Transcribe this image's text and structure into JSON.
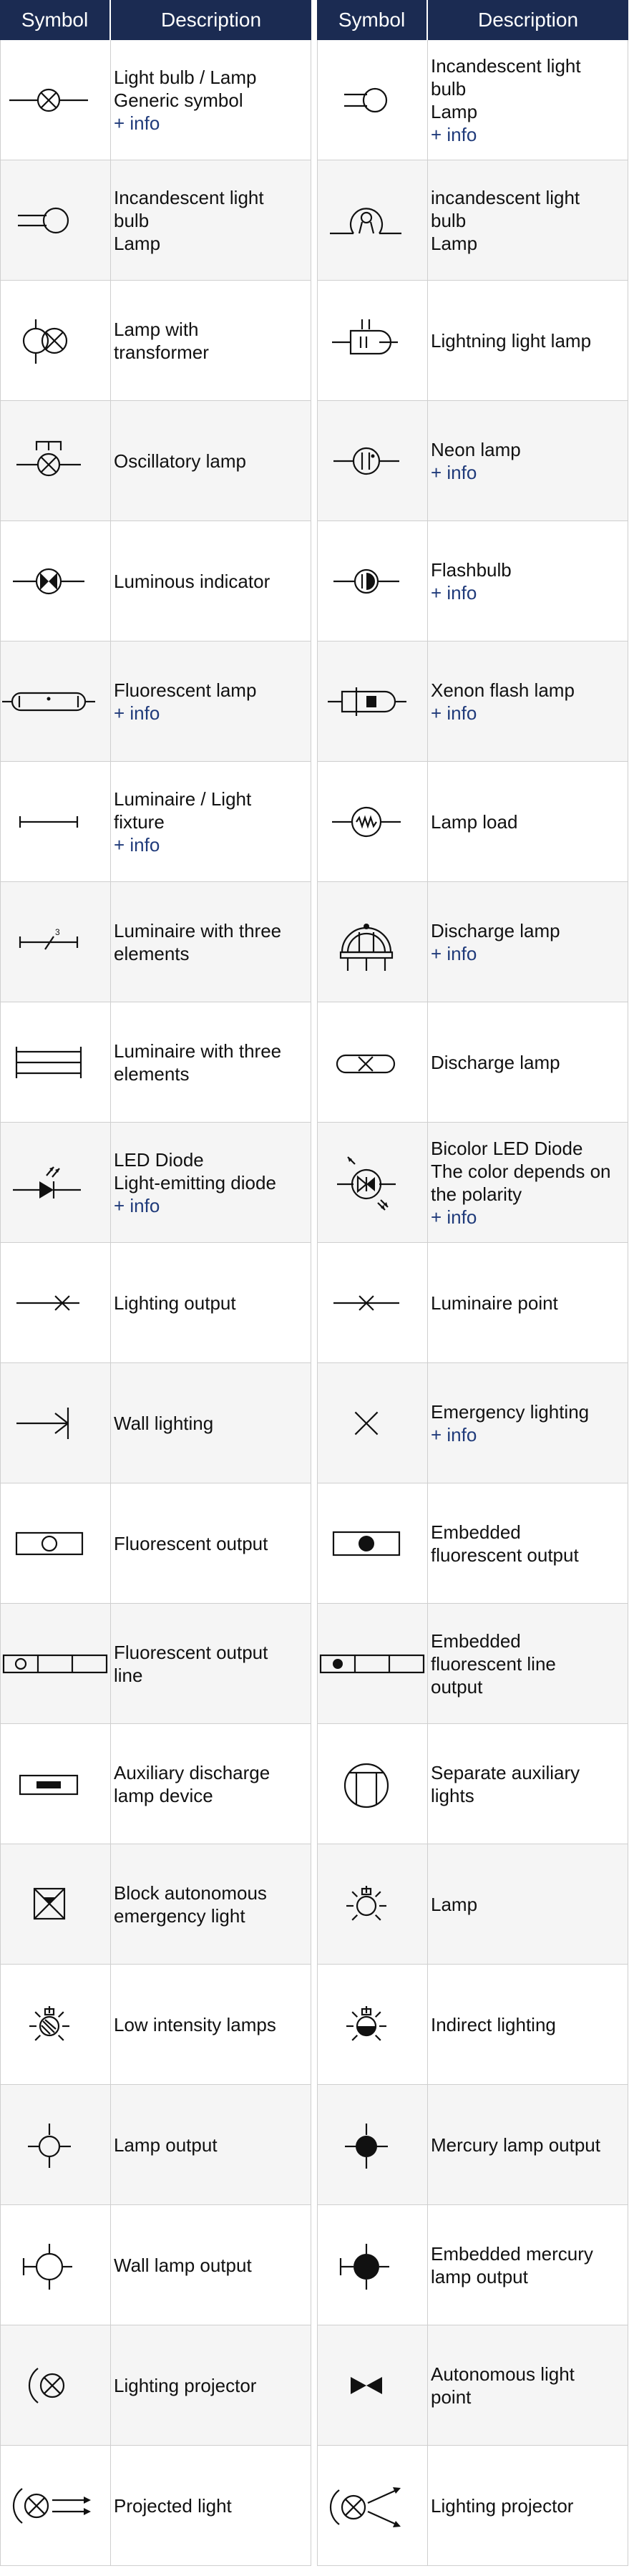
{
  "header": {
    "symbol": "Symbol",
    "description": "Description"
  },
  "left": [
    {
      "icon": "lamp-generic-icon",
      "lines": [
        "Light bulb / Lamp",
        "Generic symbol"
      ],
      "info": "+ info"
    },
    {
      "icon": "incandescent-lamp-icon",
      "lines": [
        "Incandescent light",
        "bulb",
        "Lamp"
      ],
      "info": ""
    },
    {
      "icon": "lamp-transformer-icon",
      "lines": [
        "Lamp with",
        "transformer"
      ],
      "info": ""
    },
    {
      "icon": "oscillatory-lamp-icon",
      "lines": [
        "Oscillatory lamp"
      ],
      "info": ""
    },
    {
      "icon": "luminous-indicator-icon",
      "lines": [
        "Luminous indicator"
      ],
      "info": ""
    },
    {
      "icon": "fluorescent-lamp-icon",
      "lines": [
        "Fluorescent lamp"
      ],
      "info": "+ info"
    },
    {
      "icon": "luminaire-icon",
      "lines": [
        "Luminaire / Light",
        "fixture"
      ],
      "info": "+ info"
    },
    {
      "icon": "luminaire-three-slash-icon",
      "lines": [
        "Luminaire with three",
        "elements"
      ],
      "info": ""
    },
    {
      "icon": "luminaire-three-lines-icon",
      "lines": [
        "Luminaire with three",
        "elements"
      ],
      "info": ""
    },
    {
      "icon": "led-diode-icon",
      "lines": [
        "LED Diode",
        "Light-emitting diode"
      ],
      "info": "+ info"
    },
    {
      "icon": "lighting-output-icon",
      "lines": [
        "Lighting output"
      ],
      "info": ""
    },
    {
      "icon": "wall-lighting-icon",
      "lines": [
        "Wall lighting"
      ],
      "info": ""
    },
    {
      "icon": "fluorescent-output-icon",
      "lines": [
        "Fluorescent output"
      ],
      "info": ""
    },
    {
      "icon": "fluorescent-output-line-icon",
      "lines": [
        "Fluorescent output",
        "line"
      ],
      "info": ""
    },
    {
      "icon": "auxiliary-discharge-icon",
      "lines": [
        "Auxiliary discharge",
        "lamp device"
      ],
      "info": ""
    },
    {
      "icon": "block-emergency-icon",
      "lines": [
        "Block autonomous",
        "emergency light"
      ],
      "info": ""
    },
    {
      "icon": "low-intensity-lamp-icon",
      "lines": [
        "Low intensity lamps"
      ],
      "info": ""
    },
    {
      "icon": "lamp-output-icon",
      "lines": [
        "Lamp output"
      ],
      "info": ""
    },
    {
      "icon": "wall-lamp-output-icon",
      "lines": [
        "Wall lamp output"
      ],
      "info": ""
    },
    {
      "icon": "lighting-projector-icon",
      "lines": [
        "Lighting projector"
      ],
      "info": ""
    },
    {
      "icon": "projected-light-icon",
      "lines": [
        "Projected light"
      ],
      "info": ""
    }
  ],
  "right": [
    {
      "icon": "incandescent-bulb-icon",
      "lines": [
        "Incandescent light",
        "bulb",
        "Lamp"
      ],
      "info": "+ info"
    },
    {
      "icon": "incandescent-filament-icon",
      "lines": [
        "incandescent light",
        "bulb",
        "Lamp"
      ],
      "info": ""
    },
    {
      "icon": "lightning-lamp-icon",
      "lines": [
        "Lightning light lamp"
      ],
      "info": ""
    },
    {
      "icon": "neon-lamp-icon",
      "lines": [
        "Neon lamp"
      ],
      "info": "+ info"
    },
    {
      "icon": "flashbulb-icon",
      "lines": [
        "Flashbulb"
      ],
      "info": "+ info"
    },
    {
      "icon": "xenon-flash-icon",
      "lines": [
        "Xenon flash lamp"
      ],
      "info": "+ info"
    },
    {
      "icon": "lamp-load-icon",
      "lines": [
        "Lamp load"
      ],
      "info": ""
    },
    {
      "icon": "discharge-lamp-bulb-icon",
      "lines": [
        "Discharge lamp"
      ],
      "info": "+ info"
    },
    {
      "icon": "discharge-lamp-capsule-icon",
      "lines": [
        "Discharge lamp"
      ],
      "info": ""
    },
    {
      "icon": "bicolor-led-icon",
      "lines": [
        "Bicolor LED Diode",
        "The color depends on",
        "the polarity"
      ],
      "info": "+ info"
    },
    {
      "icon": "luminaire-point-icon",
      "lines": [
        "Luminaire point"
      ],
      "info": ""
    },
    {
      "icon": "emergency-lighting-icon",
      "lines": [
        "Emergency lighting"
      ],
      "info": "+ info"
    },
    {
      "icon": "embedded-fluorescent-icon",
      "lines": [
        "Embedded",
        "fluorescent output"
      ],
      "info": ""
    },
    {
      "icon": "embedded-fluorescent-line-icon",
      "lines": [
        "Embedded",
        "fluorescent line",
        "output"
      ],
      "info": ""
    },
    {
      "icon": "separate-auxiliary-icon",
      "lines": [
        "Separate auxiliary",
        "lights"
      ],
      "info": ""
    },
    {
      "icon": "lamp-rays-icon",
      "lines": [
        "Lamp"
      ],
      "info": ""
    },
    {
      "icon": "indirect-lighting-icon",
      "lines": [
        "Indirect lighting"
      ],
      "info": ""
    },
    {
      "icon": "mercury-lamp-output-icon",
      "lines": [
        "Mercury lamp output"
      ],
      "info": ""
    },
    {
      "icon": "embedded-mercury-icon",
      "lines": [
        "Embedded mercury",
        "lamp output"
      ],
      "info": ""
    },
    {
      "icon": "autonomous-light-point-icon",
      "lines": [
        "Autonomous light",
        "point"
      ],
      "info": ""
    },
    {
      "icon": "lighting-projector-arrows-icon",
      "lines": [
        "Lighting projector"
      ],
      "info": ""
    }
  ]
}
